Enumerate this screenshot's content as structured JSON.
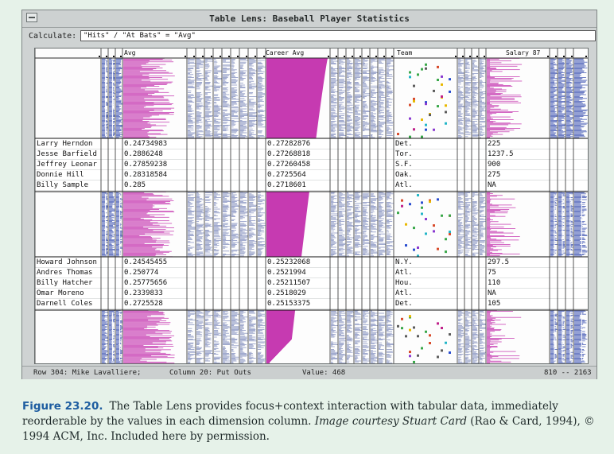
{
  "window": {
    "title": "Table Lens: Baseball Player Statistics",
    "menu_icon": "menu-box-icon"
  },
  "calculate": {
    "label": "Calculate:",
    "expression": "\"Hits\" / \"At Bats\" = \"Avg\""
  },
  "columns": {
    "avg": "Avg",
    "career_avg": "Career Avg",
    "team": "Team",
    "salary": "Salary 87"
  },
  "focus_groups": [
    {
      "rows": [
        {
          "name": "Larry Herndon",
          "avg": "0.24734983",
          "career_avg": "0.27282876",
          "team": "Det.",
          "salary": "225"
        },
        {
          "name": "Jesse Barfield",
          "avg": "0.2886248",
          "career_avg": "0.27268818",
          "team": "Tor.",
          "salary": "1237.5"
        },
        {
          "name": "Jeffrey Leonar",
          "avg": "0.27859238",
          "career_avg": "0.27260458",
          "team": "S.F.",
          "salary": "900"
        },
        {
          "name": "Donnie Hill",
          "avg": "0.28318584",
          "career_avg": "0.2725564",
          "team": "Oak.",
          "salary": "275"
        },
        {
          "name": "Billy Sample",
          "avg": "0.285",
          "career_avg": "0.2718601",
          "team": "Atl.",
          "salary": "NA"
        }
      ]
    },
    {
      "rows": [
        {
          "name": "Howard Johnson",
          "avg": "0.24545455",
          "career_avg": "0.25232068",
          "team": "N.Y.",
          "salary": "297.5"
        },
        {
          "name": "Andres Thomas",
          "avg": "0.250774",
          "career_avg": "0.2521994",
          "team": "Atl.",
          "salary": "75"
        },
        {
          "name": "Billy Hatcher",
          "avg": "0.25775656",
          "career_avg": "0.25211507",
          "team": "Hou.",
          "salary": "110"
        },
        {
          "name": "Omar Moreno",
          "avg": "0.2339833",
          "career_avg": "0.2518029",
          "team": "Atl.",
          "salary": "NA"
        },
        {
          "name": "Darnell Coles",
          "avg": "0.2725528",
          "career_avg": "0.25153375",
          "team": "Det.",
          "salary": "105"
        }
      ]
    }
  ],
  "status": {
    "row": "Row 304: Mike Lavalliere;",
    "column": "Column 20: Put Outs",
    "value": "Value: 468",
    "range": "810 -- 2163"
  },
  "caption": {
    "figure_label": "Figure 23.20.",
    "text": "The Table Lens provides focus+context interaction with tabular data, immediately reorderable by the values in each dimension column.",
    "credit": "Image courtesy Stuart Card",
    "citation": "(Rao & Card, 1994), © 1994 ACM, Inc. Included here by permission."
  },
  "colors": {
    "bar_blue": "#4f63b8",
    "bar_magenta": "#c63ab1",
    "bar_gray": "#8c97c4",
    "window_bg": "#cfd3d3",
    "caption_blue": "#1e5da0"
  }
}
